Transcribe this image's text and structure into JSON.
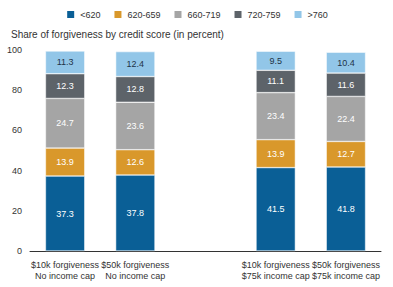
{
  "chart_data": {
    "type": "bar",
    "title": "Share of forgiveness by credit score (in percent)",
    "categories": [
      "$10k forgiveness\nNo income cap",
      "$50k forgiveness\nNo income cap",
      null,
      "$10k forgiveness\n$75k income cap",
      "$50k forgiveness\n$75k income cap"
    ],
    "series": [
      {
        "name": "<620",
        "color": "#0a5f96",
        "values": [
          37.3,
          37.8,
          null,
          41.5,
          41.8
        ]
      },
      {
        "name": "620-659",
        "color": "#d9982b",
        "values": [
          13.9,
          12.6,
          null,
          13.9,
          12.7
        ]
      },
      {
        "name": "660-719",
        "color": "#a5a5a5",
        "values": [
          24.7,
          23.6,
          null,
          23.4,
          22.4
        ]
      },
      {
        "name": "720-759",
        "color": "#5d6369",
        "values": [
          12.3,
          12.8,
          null,
          11.1,
          11.6
        ]
      },
      {
        "name": ">760",
        "color": "#92c6e8",
        "values": [
          11.3,
          12.4,
          null,
          9.5,
          10.4
        ]
      }
    ],
    "ylim": [
      0,
      100
    ],
    "yticks": [
      0,
      20,
      40,
      60,
      80,
      100
    ],
    "stacked": true,
    "data_labels": true,
    "legend": "top",
    "grid": false
  }
}
